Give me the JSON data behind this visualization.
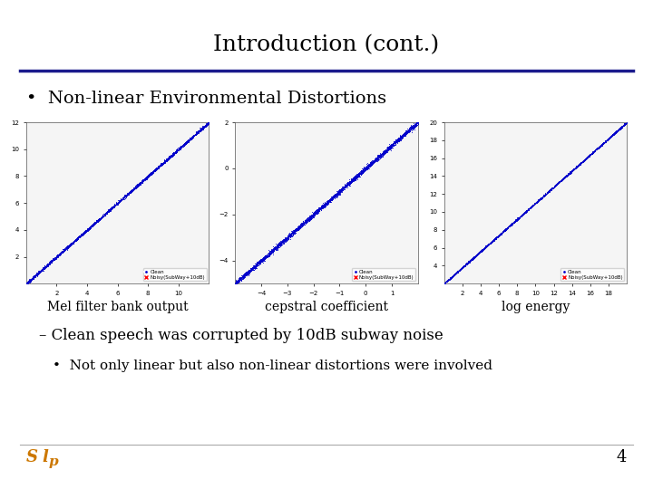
{
  "title": "Introduction (cont.)",
  "title_fontsize": 18,
  "title_color": "#000000",
  "title_font": "DejaVu Serif",
  "separator_color": "#1a1a8c",
  "bullet_text": "Non-linear Environmental Distortions",
  "bullet_fontsize": 14,
  "plot_captions": [
    "Mel filter bank output",
    "cepstral coefficient",
    "log energy"
  ],
  "caption_fontsize": 10,
  "dash_text": "– Clean speech was corrupted by 10dB subway noise",
  "dash_fontsize": 12,
  "sub_bullet": "Not only linear but also non-linear distortions were involved",
  "sub_bullet_fontsize": 11,
  "page_number": "4",
  "background_color": "#ffffff",
  "plot1": {
    "xlim": [
      0,
      12
    ],
    "ylim": [
      0,
      12
    ],
    "x_ticks": [
      2,
      4,
      6,
      8,
      10
    ],
    "y_ticks": [
      2,
      4,
      6,
      8,
      10,
      12
    ],
    "dot_color": "#ff0000",
    "line_color": "#0000cc",
    "n_points": 4000,
    "seed": 42,
    "noise_x_scale": 0.5,
    "noise_y_scale": 1.8,
    "x_start": 1.5
  },
  "plot2": {
    "xlim": [
      -5,
      2
    ],
    "ylim": [
      -5,
      2
    ],
    "x_ticks": [
      -4,
      -3,
      -2,
      -1,
      0,
      1
    ],
    "y_ticks": [
      -4,
      -2,
      0,
      2
    ],
    "dot_color": "#ff0000",
    "line_color": "#0000cc",
    "n_points": 4000,
    "seed": 43,
    "noise_x_scale": 0.5,
    "noise_y_scale": 1.2,
    "x_start": -5
  },
  "plot3": {
    "xlim": [
      0,
      20
    ],
    "ylim": [
      2,
      20
    ],
    "x_ticks": [
      2,
      4,
      6,
      8,
      10,
      12,
      14,
      16,
      18
    ],
    "y_ticks": [
      4,
      6,
      8,
      10,
      12,
      14,
      16,
      18,
      20
    ],
    "dot_color": "#ff0000",
    "line_color": "#0000cc",
    "n_points": 4000,
    "seed": 44,
    "noise_x_scale": 0.5,
    "noise_y_scale": 2.5,
    "x_start": 1
  }
}
